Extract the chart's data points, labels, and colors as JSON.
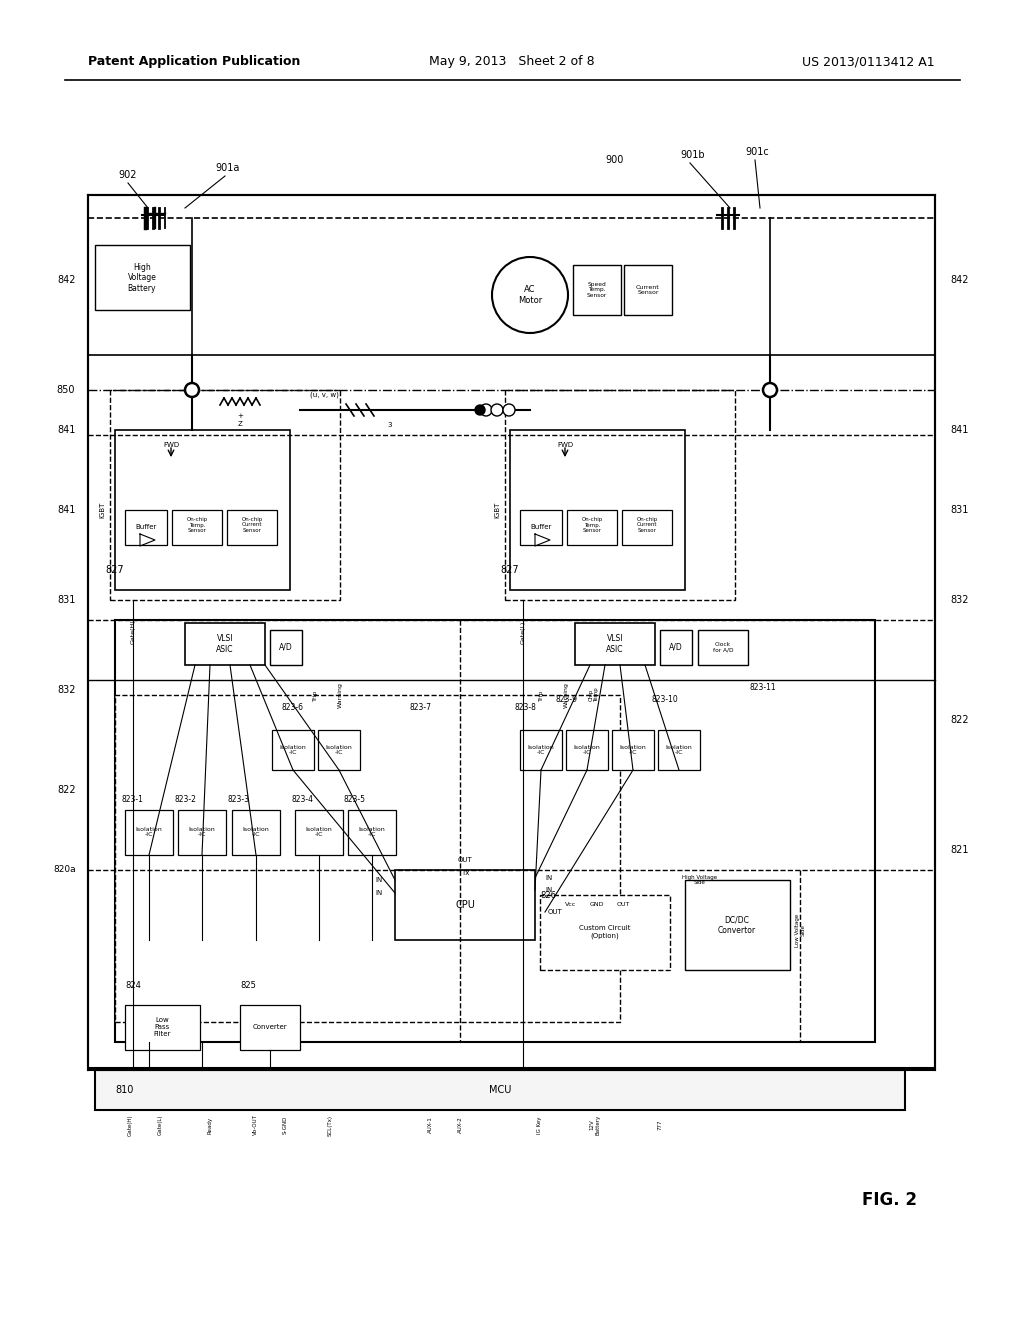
{
  "page_title_left": "Patent Application Publication",
  "page_title_center": "May 9, 2013   Sheet 2 of 8",
  "page_title_right": "US 2013/0113412 A1",
  "fig_label": "FIG. 2",
  "bg_color": "#ffffff",
  "line_color": "#000000"
}
